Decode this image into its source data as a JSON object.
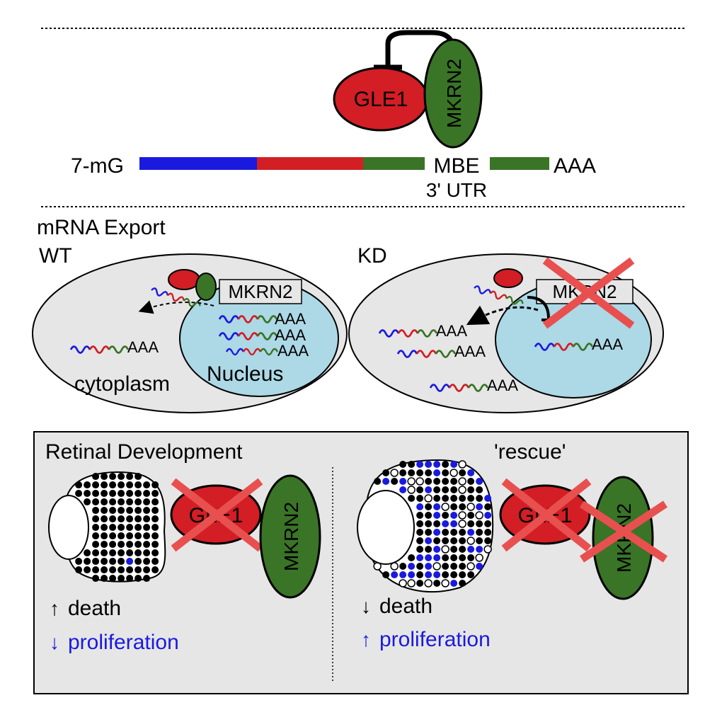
{
  "top": {
    "gle1": "GLE1",
    "mkrn2": "MKRN2",
    "cap": "7-mG",
    "mbe": "MBE",
    "utr": "3' UTR",
    "polya": "AAA"
  },
  "export": {
    "title": "mRNA Export",
    "wt": {
      "label": "WT",
      "mkrn2": "MKRN2",
      "cytoplasm": "cytoplasm",
      "nucleus": "Nucleus",
      "polya": "AAA"
    },
    "kd": {
      "label": "KD",
      "mkrn2": "MKRN2",
      "polya": "AAA"
    }
  },
  "retina": {
    "title": "Retinal Development",
    "rescue": "'rescue'",
    "left": {
      "gle1": "GLE1",
      "mkrn2": "MKRN2",
      "death": "death",
      "proliferation": "proliferation"
    },
    "right": {
      "gle1": "GLE1",
      "mkrn2": "MKRN2",
      "death": "death",
      "proliferation": "proliferation"
    }
  },
  "colors": {
    "red": "#d21e24",
    "green": "#3a7426",
    "blue": "#1a1adf",
    "light_blue": "#add8e6",
    "panel_gray": "#e6e6e6",
    "cross": "#e8504f"
  }
}
